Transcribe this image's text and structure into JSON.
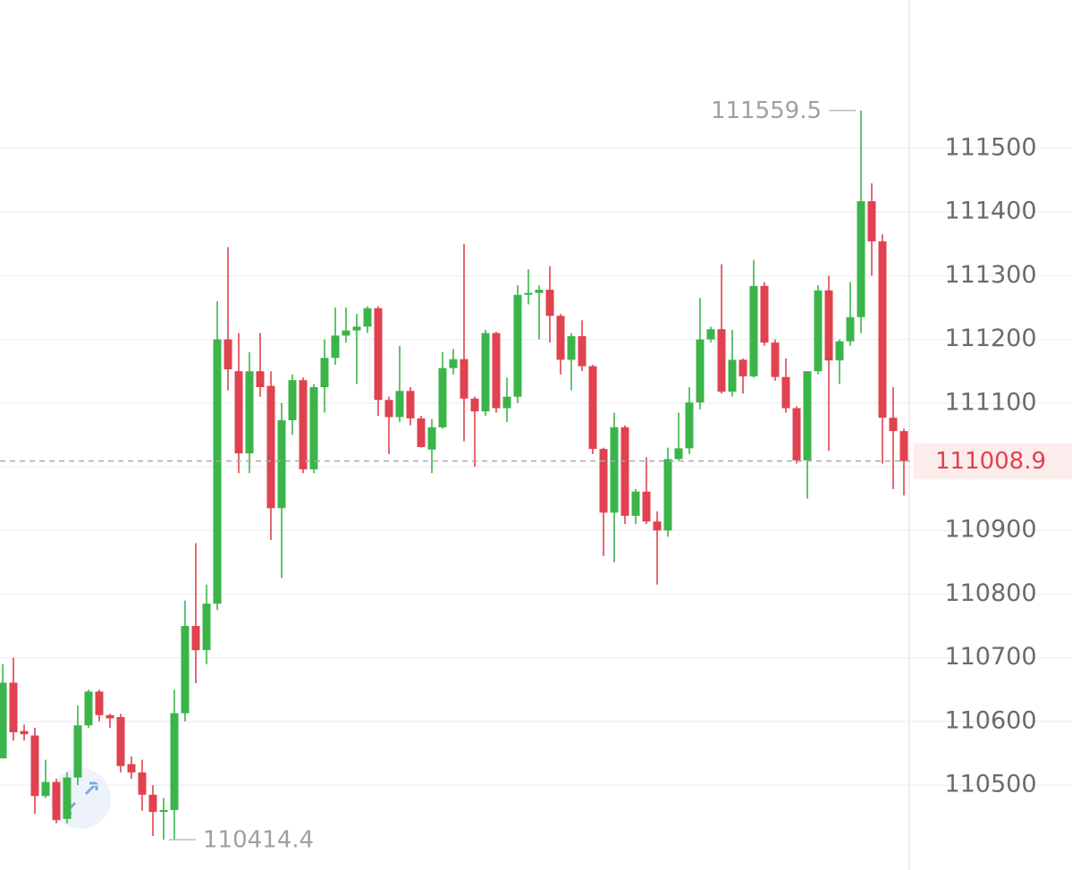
{
  "chart_data": {
    "type": "candlestick",
    "up_color": "#3bb54a",
    "down_color": "#e0424f",
    "ylim": [
      110378,
      111733
    ],
    "yticks": [
      110500,
      110600,
      110700,
      110800,
      110900,
      111000,
      111100,
      111200,
      111300,
      111400,
      111500
    ],
    "grid": true,
    "open": [
      110542,
      110661,
      110585,
      110578,
      110483,
      110505,
      110447,
      110512,
      110594,
      110647,
      110610,
      110607,
      110533,
      110520,
      110485,
      110458,
      110461,
      110613,
      110750,
      110712,
      110785,
      111200,
      111150,
      111021,
      111150,
      111127,
      110935,
      111073,
      111136,
      110996,
      111125,
      111171,
      111206,
      111214,
      111220,
      111249,
      111105,
      111078,
      111119,
      111076,
      111027,
      111062,
      111155,
      111169,
      111107,
      111087,
      111210,
      111092,
      111110,
      111270,
      111273,
      111278,
      111237,
      111168,
      111205,
      111158,
      111028,
      110928,
      111062,
      110923,
      110961,
      110914,
      110900,
      111012,
      111029,
      111101,
      111200,
      111216,
      111118,
      111168,
      111142,
      111284,
      111195,
      111141,
      111092,
      111010,
      111150,
      111277,
      111167,
      111197,
      111235,
      111417,
      111354,
      111077,
      111056
    ],
    "high": [
      110690,
      110700,
      110595,
      110590,
      110540,
      110510,
      110520,
      110625,
      110650,
      110650,
      110612,
      110612,
      110545,
      110540,
      110500,
      110480,
      110650,
      110790,
      110880,
      110815,
      111260,
      111345,
      111210,
      111180,
      111210,
      111150,
      111100,
      111145,
      111140,
      111130,
      111200,
      111250,
      111250,
      111240,
      111252,
      111252,
      111110,
      111190,
      111125,
      111080,
      111075,
      111180,
      111185,
      111350,
      111110,
      111215,
      111212,
      111140,
      111285,
      111310,
      111285,
      111315,
      111240,
      111210,
      111230,
      111160,
      111030,
      111085,
      111065,
      110965,
      111015,
      110930,
      111030,
      111085,
      111125,
      111265,
      111220,
      111318,
      111215,
      111170,
      111325,
      111290,
      111200,
      111170,
      111095,
      111150,
      111285,
      111300,
      111200,
      111290,
      111559.5,
      111445,
      111365,
      111125,
      111060
    ],
    "low": [
      110542,
      110570,
      110570,
      110455,
      110480,
      110440,
      110440,
      110500,
      110590,
      110600,
      110590,
      110520,
      110510,
      110460,
      110420,
      110414.4,
      110414.4,
      110600,
      110660,
      110690,
      110775,
      111120,
      110990,
      110990,
      111110,
      110885,
      110825,
      111050,
      110990,
      110990,
      111085,
      111160,
      111195,
      111130,
      111210,
      111080,
      111020,
      111070,
      111065,
      111030,
      110990,
      111060,
      111145,
      111040,
      111000,
      111080,
      111085,
      111070,
      111100,
      111255,
      111200,
      111195,
      111145,
      111120,
      111150,
      111020,
      110860,
      110850,
      110910,
      110910,
      110910,
      110815,
      110890,
      111010,
      111020,
      111090,
      111195,
      111115,
      111110,
      111115,
      111140,
      111190,
      111135,
      111085,
      111005,
      110950,
      111145,
      111025,
      111130,
      111190,
      111210,
      111300,
      111005,
      110965,
      110955
    ],
    "close": [
      110661,
      110583,
      110580,
      110483,
      110505,
      110445,
      110512,
      110594,
      110647,
      110610,
      110605,
      110530,
      110520,
      110485,
      110458,
      110461,
      110613,
      110750,
      110712,
      110785,
      111200,
      111153,
      111021,
      111150,
      111125,
      110935,
      111073,
      111136,
      110996,
      111125,
      111171,
      111206,
      111214,
      111220,
      111249,
      111105,
      111078,
      111119,
      111076,
      111031,
      111062,
      111155,
      111169,
      111107,
      111087,
      111210,
      111092,
      111110,
      111270,
      111273,
      111278,
      111237,
      111168,
      111205,
      111158,
      111028,
      110928,
      111062,
      110923,
      110961,
      110914,
      110900,
      111012,
      111029,
      111101,
      111200,
      111216,
      111118,
      111168,
      111142,
      111284,
      111195,
      111141,
      111092,
      111010,
      111150,
      111277,
      111167,
      111197,
      111235,
      111417,
      111354,
      111077,
      111056,
      111008.9
    ]
  }
}
